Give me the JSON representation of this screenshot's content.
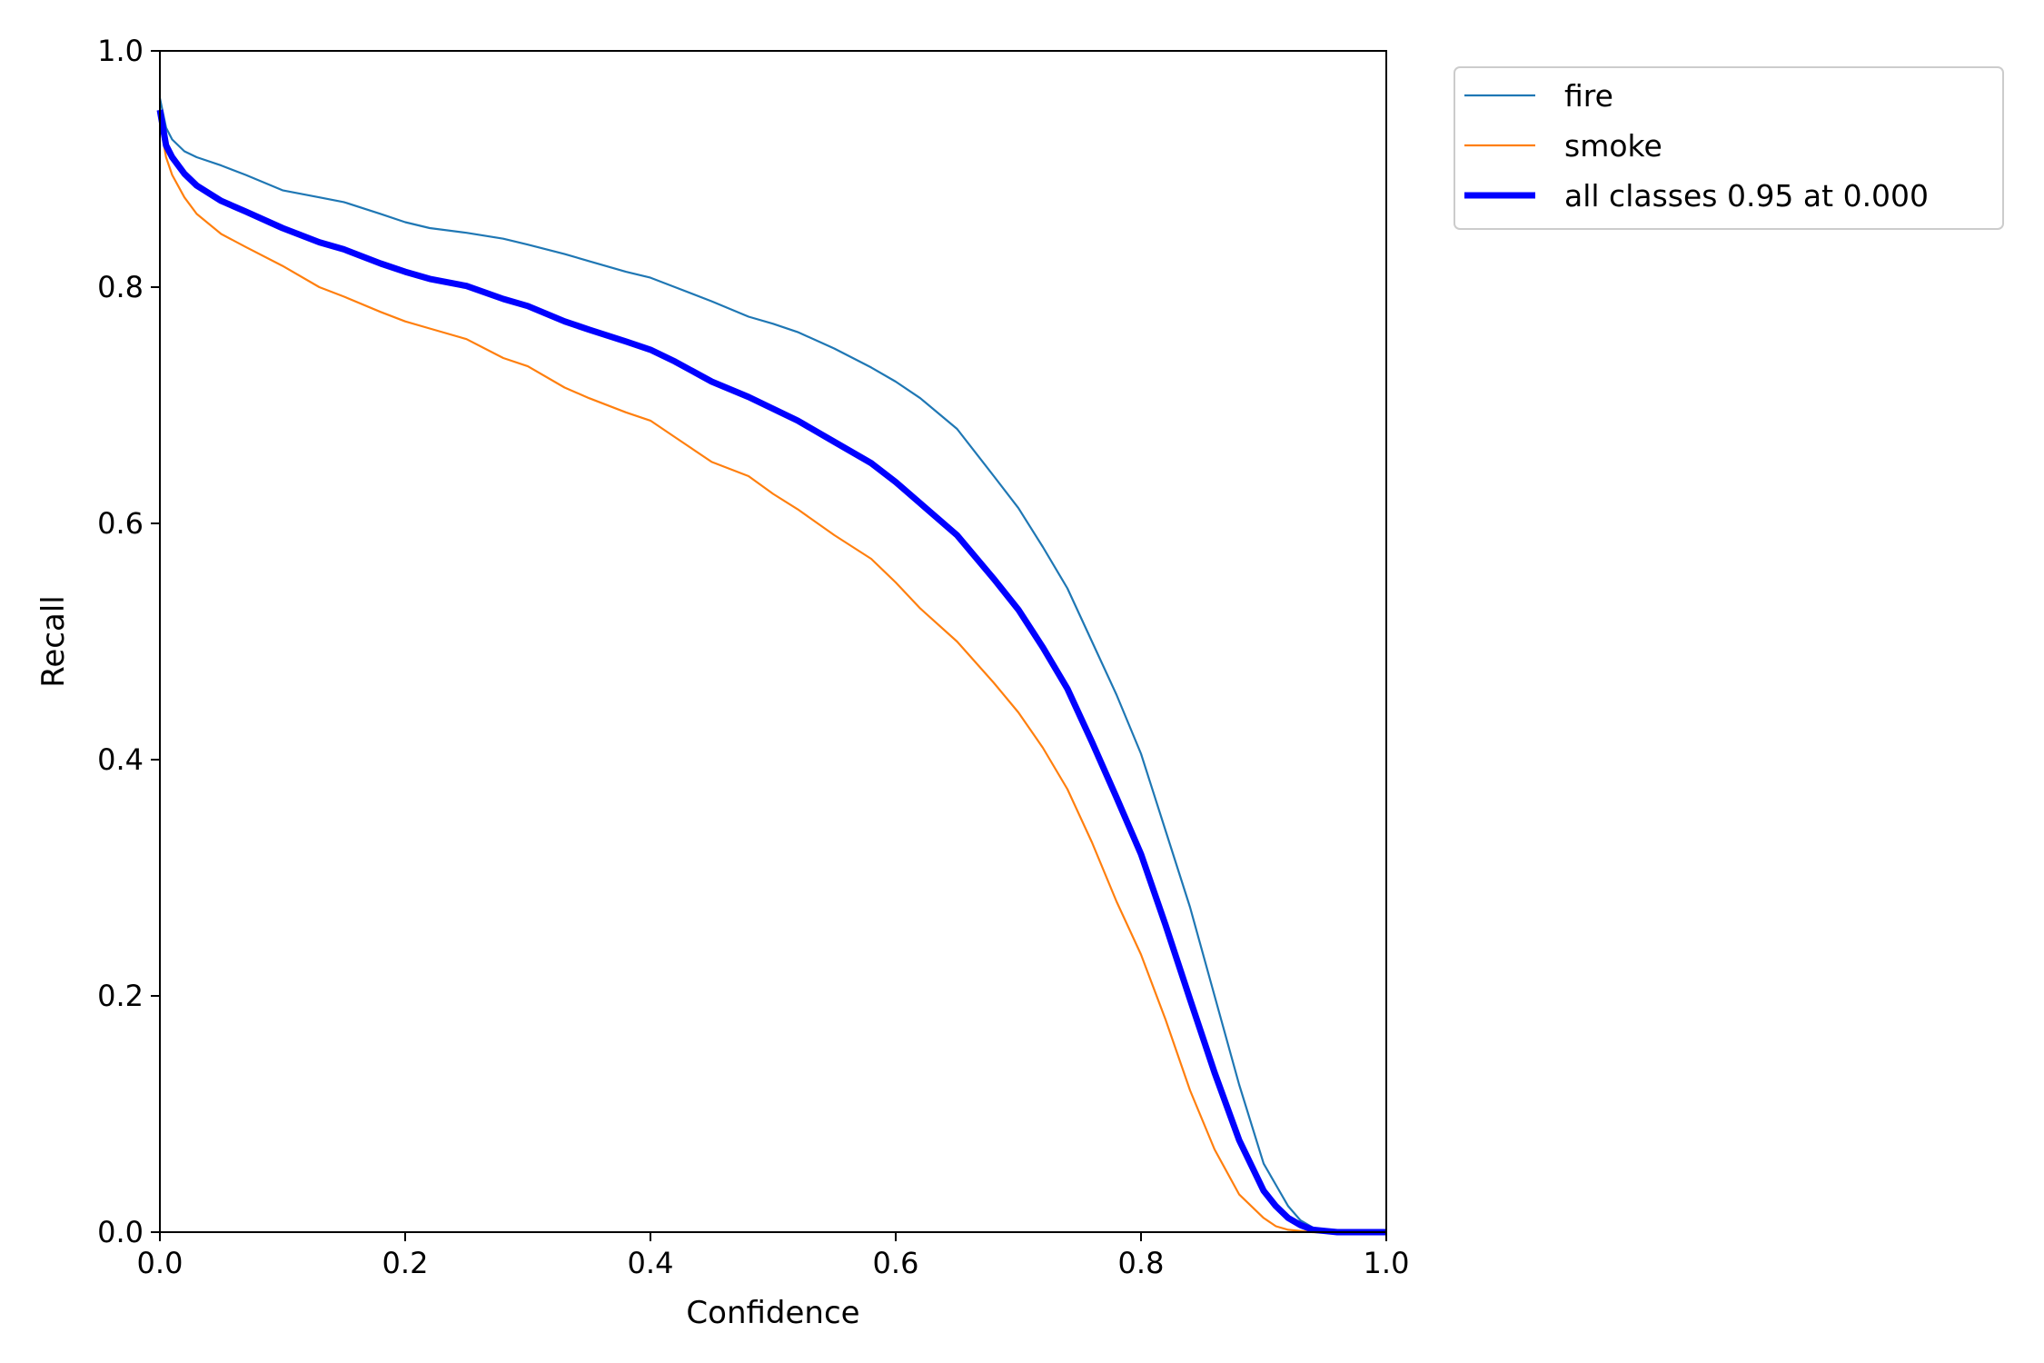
{
  "chart_data": {
    "type": "line",
    "xlabel": "Confidence",
    "ylabel": "Recall",
    "xlim": [
      0,
      1
    ],
    "ylim": [
      0,
      1
    ],
    "grid": false,
    "legend_position": "outside-upper-right",
    "x_ticks": [
      "0.0",
      "0.2",
      "0.4",
      "0.6",
      "0.8",
      "1.0"
    ],
    "y_ticks": [
      "0.0",
      "0.2",
      "0.4",
      "0.6",
      "0.8",
      "1.0"
    ],
    "x": [
      0.0,
      0.005,
      0.01,
      0.02,
      0.03,
      0.05,
      0.07,
      0.1,
      0.13,
      0.15,
      0.18,
      0.2,
      0.22,
      0.25,
      0.28,
      0.3,
      0.33,
      0.35,
      0.38,
      0.4,
      0.42,
      0.45,
      0.48,
      0.5,
      0.52,
      0.55,
      0.58,
      0.6,
      0.62,
      0.65,
      0.68,
      0.7,
      0.72,
      0.74,
      0.76,
      0.78,
      0.8,
      0.82,
      0.84,
      0.86,
      0.88,
      0.9,
      0.91,
      0.92,
      0.93,
      0.94,
      0.95,
      0.96,
      0.97,
      0.98,
      1.0
    ],
    "series": [
      {
        "name": "fire",
        "color": "#1f77b4",
        "values": [
          0.96,
          0.935,
          0.925,
          0.915,
          0.91,
          0.903,
          0.895,
          0.882,
          0.876,
          0.872,
          0.862,
          0.855,
          0.85,
          0.846,
          0.841,
          0.836,
          0.828,
          0.822,
          0.813,
          0.808,
          0.8,
          0.788,
          0.775,
          0.769,
          0.762,
          0.748,
          0.732,
          0.72,
          0.706,
          0.68,
          0.64,
          0.613,
          0.58,
          0.545,
          0.5,
          0.455,
          0.405,
          0.34,
          0.275,
          0.2,
          0.125,
          0.058,
          0.04,
          0.022,
          0.01,
          0.004,
          0.001,
          0.0,
          0.0,
          0.0,
          0.0
        ]
      },
      {
        "name": "smoke",
        "color": "#ff7f0e",
        "values": [
          0.94,
          0.91,
          0.895,
          0.876,
          0.862,
          0.845,
          0.834,
          0.818,
          0.8,
          0.792,
          0.779,
          0.771,
          0.765,
          0.756,
          0.74,
          0.733,
          0.715,
          0.706,
          0.694,
          0.687,
          0.673,
          0.652,
          0.64,
          0.625,
          0.612,
          0.59,
          0.57,
          0.55,
          0.528,
          0.5,
          0.465,
          0.44,
          0.41,
          0.375,
          0.33,
          0.28,
          0.235,
          0.18,
          0.12,
          0.07,
          0.032,
          0.012,
          0.005,
          0.002,
          0.001,
          0.0,
          0.0,
          0.0,
          0.0,
          0.0,
          0.0
        ]
      },
      {
        "name": "all classes 0.95 at 0.000",
        "color": "#0000ff",
        "values": [
          0.95,
          0.92,
          0.91,
          0.896,
          0.886,
          0.873,
          0.864,
          0.85,
          0.838,
          0.832,
          0.82,
          0.813,
          0.807,
          0.801,
          0.79,
          0.784,
          0.771,
          0.764,
          0.754,
          0.747,
          0.737,
          0.72,
          0.707,
          0.697,
          0.687,
          0.669,
          0.651,
          0.635,
          0.617,
          0.59,
          0.553,
          0.527,
          0.495,
          0.46,
          0.415,
          0.368,
          0.32,
          0.26,
          0.197,
          0.135,
          0.078,
          0.035,
          0.022,
          0.012,
          0.006,
          0.002,
          0.001,
          0.0,
          0.0,
          0.0,
          0.0
        ]
      }
    ]
  }
}
